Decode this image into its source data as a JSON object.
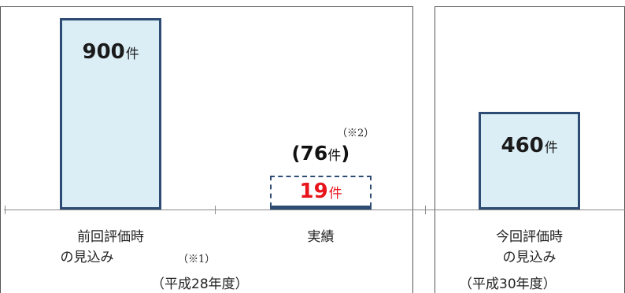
{
  "chart_data": {
    "type": "bar",
    "unit": "件",
    "categories": [
      {
        "lines": [
          "前回評価時",
          "の見込み"
        ],
        "note": "（※1）"
      },
      {
        "lines": [
          "実績"
        ],
        "note": ""
      },
      {
        "lines": [
          "今回評価時",
          "の見込み"
        ],
        "note": ""
      }
    ],
    "values": [
      900,
      19,
      460
    ],
    "value_labels": [
      "900",
      "19",
      "460"
    ],
    "value_colors": [
      "#1a1a1a",
      "#e8141b",
      "#1a1a1a"
    ],
    "extra_value": {
      "category_index": 1,
      "value": 76,
      "label": "76",
      "note": "（※2）"
    },
    "group_labels": [
      "（平成28年度）",
      "（平成30年度）"
    ],
    "ylim": [
      0,
      960
    ],
    "grid": false,
    "colors": {
      "bar_fill": "#dbeef6",
      "bar_border": "#2e4b74",
      "highlight": "#e8141b"
    }
  }
}
